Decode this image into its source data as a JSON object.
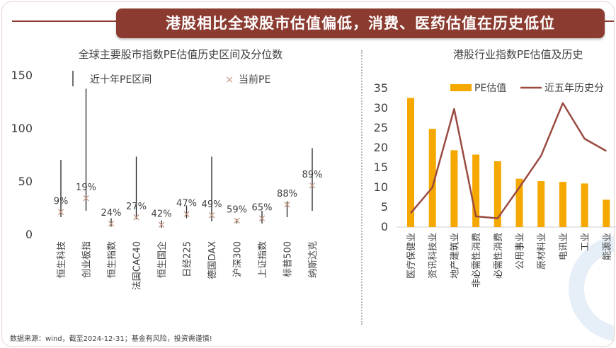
{
  "header": {
    "title": "港股相比全球股市估值偏低，消费、医药估值在历史低位"
  },
  "footer": {
    "source": "数据来源：wind，截至2024-12-31；基金有风险，投资需谨慎!"
  },
  "colors": {
    "brand": "#8c3b30",
    "bar": "#f5a800",
    "line": "#9a4a40",
    "marker": "#c79a86"
  },
  "chart_data": [
    {
      "type": "scatter",
      "title": "全球主要股市指数PE估值历史区间及分位数",
      "legend": {
        "range_label": "近十年PE区间",
        "current_label": "当前PE"
      },
      "categories": [
        "恒生科技",
        "创业板指",
        "恒生指数",
        "法国CAC40",
        "恒生国企",
        "日经225",
        "德国DAX",
        "沪深300",
        "上证指数",
        "标普500",
        "纳斯达克"
      ],
      "range_low": [
        16,
        22,
        7,
        14,
        6,
        15,
        12,
        10,
        10,
        16,
        22
      ],
      "range_high": [
        70,
        137,
        15,
        73,
        13,
        27,
        73,
        14,
        22,
        31,
        81
      ],
      "current_pe": [
        21,
        34,
        10,
        16,
        9,
        19,
        18,
        13,
        15,
        28,
        46
      ],
      "percentiles": [
        "9%",
        "19%",
        "24%",
        "27%",
        "42%",
        "47%",
        "49%",
        "59%",
        "65%",
        "88%",
        "89%"
      ],
      "y_ticks": [
        "0",
        "50",
        "100",
        "150"
      ],
      "ylim": [
        0,
        150
      ]
    },
    {
      "type": "bar",
      "title": "港股行业指数PE估值及历史",
      "categories": [
        "医疗保健业",
        "资讯科技业",
        "地产建筑业",
        "非必需性消费",
        "必需性消费",
        "公用事业",
        "原材料业",
        "电讯业",
        "工业",
        "能源业"
      ],
      "series": [
        {
          "name": "PE估值",
          "type": "bar",
          "values": [
            32.6,
            24.8,
            19.4,
            18.3,
            16.6,
            12.2,
            11.6,
            11.4,
            11.0,
            6.9
          ]
        },
        {
          "name": "近五年历史分",
          "type": "line",
          "values": [
            3.5,
            10.0,
            29.8,
            2.7,
            2.2,
            10.0,
            18.0,
            31.3,
            22.3,
            19.2
          ]
        }
      ],
      "y_ticks": [
        "0",
        "5",
        "10",
        "15",
        "20",
        "25",
        "30",
        "35"
      ],
      "ylim": [
        0,
        35
      ]
    }
  ]
}
